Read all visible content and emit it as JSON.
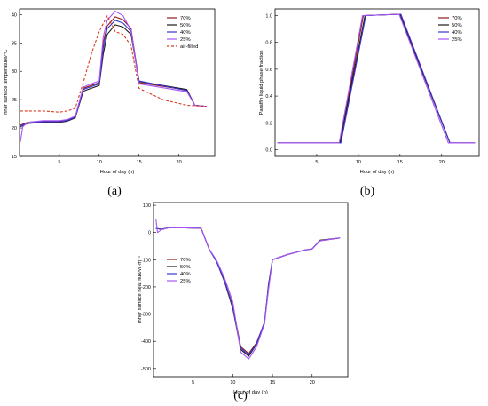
{
  "colors": {
    "s70": "#8b1a1a",
    "s50": "#1a1a1a",
    "s40": "#3a35c8",
    "s25": "#a855f7",
    "airfilled": "#d93a1f"
  },
  "chart_data": [
    {
      "id": "a",
      "panel_label": "(a)",
      "type": "line",
      "xlabel": "Hour of day (h)",
      "ylabel": "Inner surface temperature/°C",
      "xlim": [
        0,
        24.5
      ],
      "ylim": [
        15,
        41
      ],
      "xticks": [
        5,
        10,
        15,
        20
      ],
      "yticks": [
        15,
        20,
        25,
        30,
        35,
        40
      ],
      "legend_position": "top-right",
      "series": [
        {
          "name": "70%",
          "color": "s70",
          "dash": "",
          "x": [
            0.1,
            1,
            3,
            5,
            6,
            7,
            8,
            9,
            10,
            10.5,
            11,
            12,
            13,
            14,
            15,
            21,
            22,
            23.5
          ],
          "y": [
            20.5,
            21,
            21.2,
            21.2,
            21.4,
            22,
            27,
            27.5,
            28,
            35,
            38,
            39.6,
            39.1,
            37.5,
            28,
            26.7,
            24,
            23.8
          ]
        },
        {
          "name": "50%",
          "color": "s50",
          "dash": "",
          "x": [
            0.1,
            1,
            3,
            5,
            6,
            7,
            8,
            9,
            10,
            10.5,
            11,
            12,
            13,
            14,
            15,
            21,
            22,
            23.5
          ],
          "y": [
            20.2,
            20.8,
            21,
            21,
            21.2,
            21.8,
            26.5,
            27,
            27.5,
            33,
            36.5,
            38.2,
            37.8,
            36.5,
            28.2,
            26.8,
            24,
            23.8
          ]
        },
        {
          "name": "40%",
          "color": "s40",
          "dash": "",
          "x": [
            0.1,
            1,
            3,
            5,
            6,
            7,
            8,
            9,
            10,
            10.5,
            11,
            12,
            13,
            14,
            15,
            21,
            22,
            23.5
          ],
          "y": [
            20.3,
            20.9,
            21.1,
            21.1,
            21.3,
            21.9,
            26.8,
            27.3,
            27.8,
            34,
            37.5,
            39,
            38.5,
            37,
            28.3,
            26.6,
            24,
            23.8
          ]
        },
        {
          "name": "25%",
          "color": "s25",
          "dash": "",
          "x": [
            0.1,
            0.4,
            1,
            3,
            5,
            6,
            7,
            8,
            9,
            10,
            10.5,
            11,
            12,
            13,
            14,
            15,
            21,
            22,
            23.5
          ],
          "y": [
            17.5,
            20.2,
            21,
            21.3,
            21.3,
            21.5,
            22.1,
            27.2,
            27.8,
            28.3,
            36,
            39,
            40.6,
            39.8,
            37.2,
            27.8,
            26.4,
            24,
            23.8
          ]
        },
        {
          "name": "air-filled",
          "color": "airfilled",
          "dash": "3,2",
          "x": [
            0.1,
            1,
            3,
            5,
            6,
            7,
            8,
            9,
            10,
            11,
            12,
            13,
            14,
            15,
            18,
            21,
            23.5
          ],
          "y": [
            23,
            23,
            23,
            22.8,
            23,
            23.5,
            28,
            33,
            37,
            39.8,
            37,
            36.5,
            34.5,
            27,
            25,
            24,
            23.8
          ]
        }
      ]
    },
    {
      "id": "b",
      "panel_label": "(b)",
      "type": "line",
      "xlabel": "Hour of day (h)",
      "ylabel": "Paraffin liquid phase fraction",
      "xlim": [
        0,
        24.5
      ],
      "ylim": [
        -0.05,
        1.05
      ],
      "xticks": [
        5,
        10,
        15,
        20
      ],
      "yticks": [
        0.0,
        0.2,
        0.4,
        0.6,
        0.8,
        1.0
      ],
      "legend_position": "top-right",
      "series": [
        {
          "name": "70%",
          "color": "s70",
          "dash": "",
          "x": [
            0.3,
            7.8,
            10.6,
            15,
            21,
            24
          ],
          "y": [
            0.05,
            0.05,
            1.0,
            1.01,
            0.05,
            0.05
          ]
        },
        {
          "name": "50%",
          "color": "s50",
          "dash": "",
          "x": [
            0.3,
            7.8,
            10.8,
            15,
            21,
            24
          ],
          "y": [
            0.05,
            0.05,
            1.0,
            1.01,
            0.05,
            0.05
          ]
        },
        {
          "name": "40%",
          "color": "s40",
          "dash": "",
          "x": [
            0.3,
            7.9,
            10.9,
            15.1,
            21,
            24
          ],
          "y": [
            0.05,
            0.05,
            1.0,
            1.01,
            0.05,
            0.05
          ]
        },
        {
          "name": "25%",
          "color": "s25",
          "dash": "",
          "x": [
            0.3,
            7.7,
            10.5,
            14.9,
            20.8,
            24
          ],
          "y": [
            0.05,
            0.05,
            1.0,
            1.01,
            0.05,
            0.05
          ]
        }
      ]
    },
    {
      "id": "c",
      "panel_label": "(c)",
      "type": "line",
      "xlabel": "Hour of day (h)",
      "ylabel": "Inner surface heat flux/W·m⁻²",
      "xlim": [
        0,
        24.5
      ],
      "ylim": [
        -530,
        110
      ],
      "xticks": [
        5,
        10,
        15,
        20
      ],
      "yticks": [
        100,
        0,
        -100,
        -200,
        -300,
        -400,
        -500
      ],
      "legend_position": "center-left",
      "series": [
        {
          "name": "70%",
          "color": "s70",
          "dash": "",
          "x": [
            0.3,
            1,
            2,
            4,
            6,
            7,
            8,
            9,
            10,
            11,
            12,
            13,
            14,
            14.5,
            15,
            17,
            19,
            20,
            21,
            23.5
          ],
          "y": [
            15,
            12,
            18,
            17,
            16,
            -60,
            -110,
            -180,
            -270,
            -420,
            -445,
            -405,
            -330,
            -200,
            -100,
            -80,
            -65,
            -60,
            -30,
            -20
          ]
        },
        {
          "name": "50%",
          "color": "s50",
          "dash": "",
          "x": [
            0.3,
            1,
            2,
            4,
            6,
            7,
            8,
            9,
            10,
            11,
            12,
            13,
            14,
            14.5,
            15,
            17,
            19,
            20,
            21,
            23.5
          ],
          "y": [
            15,
            12,
            18,
            17,
            16,
            -60,
            -110,
            -185,
            -280,
            -430,
            -455,
            -410,
            -335,
            -190,
            -100,
            -80,
            -65,
            -60,
            -28,
            -20
          ]
        },
        {
          "name": "40%",
          "color": "s40",
          "dash": "",
          "x": [
            0.3,
            1,
            2,
            4,
            6,
            7,
            8,
            9,
            10,
            11,
            12,
            13,
            14,
            14.5,
            15,
            17,
            19,
            20,
            21,
            23.5
          ],
          "y": [
            15,
            12,
            18,
            17,
            16,
            -60,
            -110,
            -182,
            -275,
            -425,
            -450,
            -408,
            -330,
            -195,
            -100,
            -80,
            -65,
            -60,
            -30,
            -20
          ]
        },
        {
          "name": "25%",
          "color": "s25",
          "dash": "",
          "x": [
            0.3,
            0.5,
            1,
            2,
            4,
            6,
            7,
            8,
            9,
            10,
            11,
            12,
            13,
            14,
            14.5,
            15,
            17,
            19,
            20,
            21,
            23.5
          ],
          "y": [
            50,
            0,
            10,
            18,
            17,
            16,
            -60,
            -105,
            -170,
            -255,
            -440,
            -465,
            -420,
            -335,
            -210,
            -100,
            -80,
            -65,
            -60,
            -30,
            -20
          ]
        }
      ]
    }
  ]
}
